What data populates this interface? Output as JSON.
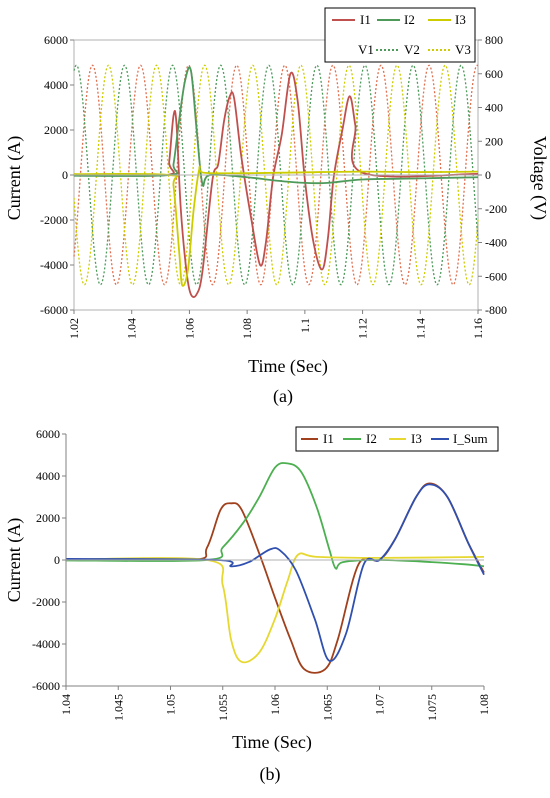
{
  "figure": {
    "caption_a": "(a)",
    "caption_b": "(b)"
  },
  "chart_data": [
    {
      "type": "line",
      "panel": "(a)",
      "xlabel": "Time (Sec)",
      "ylabel": "Current (A)",
      "y2label": "Voltage (V)",
      "xlim": [
        1.02,
        1.16
      ],
      "ylim": [
        -6000,
        6000
      ],
      "y2lim": [
        -800,
        800
      ],
      "xticks": [
        "1.02",
        "1.04",
        "1.06",
        "1.08",
        "1.1",
        "1.12",
        "1.14",
        "1.16"
      ],
      "yticks": [
        "6000",
        "4000",
        "2000",
        "0",
        "-2000",
        "-4000",
        "-6000"
      ],
      "y2ticks": [
        "800",
        "600",
        "400",
        "200",
        "0",
        "-200",
        "-400",
        "-600",
        "-800"
      ],
      "legend_position": "top-right",
      "grid": false,
      "series": [
        {
          "name": "I1",
          "axis": "left",
          "style": "solid",
          "color": "#c0504d",
          "points": [
            [
              1.02,
              30
            ],
            [
              1.052,
              0
            ],
            [
              1.053,
              600
            ],
            [
              1.0545,
              2650
            ],
            [
              1.0555,
              2300
            ],
            [
              1.057,
              -1500
            ],
            [
              1.059,
              -4300
            ],
            [
              1.0605,
              -5300
            ],
            [
              1.0625,
              -5300
            ],
            [
              1.0645,
              -4300
            ],
            [
              1.068,
              -200
            ],
            [
              1.07,
              500
            ],
            [
              1.072,
              2400
            ],
            [
              1.074,
              3500
            ],
            [
              1.0755,
              3400
            ],
            [
              1.078,
              800
            ],
            [
              1.0815,
              -2000
            ],
            [
              1.0845,
              -4000
            ],
            [
              1.0865,
              -3000
            ],
            [
              1.089,
              -100
            ],
            [
              1.092,
              1800
            ],
            [
              1.095,
              4500
            ],
            [
              1.0975,
              3300
            ],
            [
              1.1,
              -200
            ],
            [
              1.103,
              -3000
            ],
            [
              1.106,
              -4200
            ],
            [
              1.108,
              -2800
            ],
            [
              1.11,
              -100
            ],
            [
              1.113,
              2000
            ],
            [
              1.1155,
              3500
            ],
            [
              1.1175,
              2200
            ],
            [
              1.12,
              100
            ],
            [
              1.16,
              50
            ]
          ]
        },
        {
          "name": "I2",
          "axis": "left",
          "style": "solid",
          "color": "#4e9a5b",
          "points": [
            [
              1.02,
              -30
            ],
            [
              1.053,
              0
            ],
            [
              1.0545,
              500
            ],
            [
              1.0565,
              2500
            ],
            [
              1.0585,
              4200
            ],
            [
              1.0605,
              4650
            ],
            [
              1.0625,
              2000
            ],
            [
              1.0645,
              -400
            ],
            [
              1.067,
              0
            ],
            [
              1.08,
              -100
            ],
            [
              1.09,
              -250
            ],
            [
              1.1,
              -350
            ],
            [
              1.108,
              -350
            ],
            [
              1.12,
              -200
            ],
            [
              1.14,
              -150
            ],
            [
              1.16,
              -100
            ]
          ]
        },
        {
          "name": "I3",
          "axis": "left",
          "style": "solid",
          "color": "#cccc00",
          "points": [
            [
              1.02,
              40
            ],
            [
              1.053,
              0
            ],
            [
              1.0545,
              -500
            ],
            [
              1.0565,
              -3500
            ],
            [
              1.0575,
              -4900
            ],
            [
              1.0595,
              -4200
            ],
            [
              1.0615,
              -1500
            ],
            [
              1.0635,
              300
            ],
            [
              1.065,
              100
            ],
            [
              1.08,
              80
            ],
            [
              1.1,
              120
            ],
            [
              1.12,
              150
            ],
            [
              1.14,
              130
            ],
            [
              1.16,
              150
            ]
          ]
        },
        {
          "name": "V1",
          "axis": "right",
          "style": "dotted",
          "color": "#e07050",
          "wave": {
            "amp": 650,
            "freq": 60,
            "phase_deg": -120
          }
        },
        {
          "name": "V2",
          "axis": "right",
          "style": "dotted",
          "color": "#4e9a5b",
          "wave": {
            "amp": 650,
            "freq": 60,
            "phase_deg": 0
          }
        },
        {
          "name": "V3",
          "axis": "right",
          "style": "dotted",
          "color": "#cccc00",
          "wave": {
            "amp": 650,
            "freq": 60,
            "phase_deg": 120
          }
        }
      ]
    },
    {
      "type": "line",
      "panel": "(b)",
      "xlabel": "Time (Sec)",
      "ylabel": "Current (A)",
      "xlim": [
        1.04,
        1.08
      ],
      "ylim": [
        -6000,
        6000
      ],
      "xticks": [
        "1.04",
        "1.045",
        "1.05",
        "1.055",
        "1.06",
        "1.065",
        "1.07",
        "1.075",
        "1.08"
      ],
      "yticks": [
        "6000",
        "4000",
        "2000",
        "0",
        "-2000",
        "-4000",
        "-6000"
      ],
      "legend_position": "top-right",
      "grid": false,
      "series": [
        {
          "name": "I1",
          "color": "#a0401c",
          "points": [
            [
              1.04,
              40
            ],
            [
              1.052,
              0
            ],
            [
              1.0535,
              600
            ],
            [
              1.0548,
              2400
            ],
            [
              1.0558,
              2700
            ],
            [
              1.0568,
              2400
            ],
            [
              1.0585,
              300
            ],
            [
              1.06,
              -1800
            ],
            [
              1.0615,
              -3800
            ],
            [
              1.0628,
              -5200
            ],
            [
              1.0648,
              -5200
            ],
            [
              1.066,
              -3800
            ],
            [
              1.068,
              -200
            ],
            [
              1.07,
              0
            ],
            [
              1.0715,
              1000
            ],
            [
              1.0735,
              3000
            ],
            [
              1.0748,
              3650
            ],
            [
              1.0765,
              3000
            ],
            [
              1.0785,
              800
            ],
            [
              1.08,
              -600
            ]
          ]
        },
        {
          "name": "I2",
          "color": "#4caf50",
          "points": [
            [
              1.04,
              -20
            ],
            [
              1.0535,
              0
            ],
            [
              1.055,
              600
            ],
            [
              1.057,
              1800
            ],
            [
              1.0585,
              3000
            ],
            [
              1.06,
              4400
            ],
            [
              1.0612,
              4600
            ],
            [
              1.0625,
              4200
            ],
            [
              1.064,
              2500
            ],
            [
              1.0652,
              500
            ],
            [
              1.0658,
              -400
            ],
            [
              1.0665,
              -100
            ],
            [
              1.07,
              0
            ],
            [
              1.075,
              -100
            ],
            [
              1.078,
              -200
            ],
            [
              1.08,
              -300
            ]
          ]
        },
        {
          "name": "I3",
          "color": "#e6d830",
          "points": [
            [
              1.04,
              20
            ],
            [
              1.0535,
              0
            ],
            [
              1.055,
              -1200
            ],
            [
              1.0558,
              -3800
            ],
            [
              1.0568,
              -4850
            ],
            [
              1.0585,
              -4400
            ],
            [
              1.06,
              -2800
            ],
            [
              1.0612,
              -1000
            ],
            [
              1.0622,
              250
            ],
            [
              1.064,
              150
            ],
            [
              1.07,
              100
            ],
            [
              1.08,
              150
            ]
          ]
        },
        {
          "name": "I_Sum",
          "color": "#3050b0",
          "points": [
            [
              1.04,
              50
            ],
            [
              1.0545,
              0
            ],
            [
              1.0558,
              -300
            ],
            [
              1.0575,
              -100
            ],
            [
              1.0595,
              500
            ],
            [
              1.0605,
              450
            ],
            [
              1.062,
              -500
            ],
            [
              1.0638,
              -2800
            ],
            [
              1.0652,
              -4800
            ],
            [
              1.0668,
              -3500
            ],
            [
              1.0685,
              -200
            ],
            [
              1.07,
              0
            ],
            [
              1.0715,
              1000
            ],
            [
              1.0735,
              3000
            ],
            [
              1.0748,
              3600
            ],
            [
              1.0765,
              3000
            ],
            [
              1.0785,
              800
            ],
            [
              1.08,
              -700
            ]
          ]
        }
      ]
    }
  ]
}
